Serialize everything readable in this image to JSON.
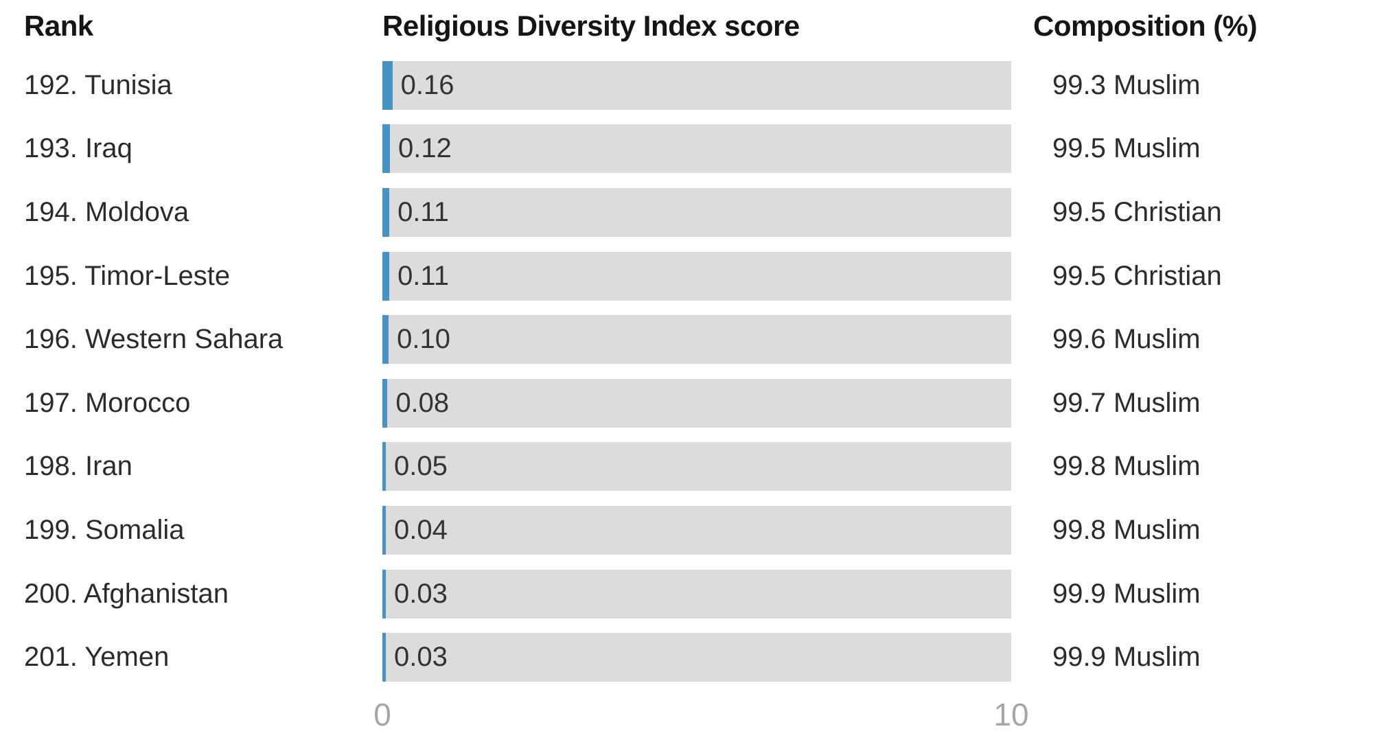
{
  "chart_data": {
    "type": "bar",
    "orientation": "horizontal",
    "columns": {
      "rank": "Rank",
      "score": "Religious Diversity Index score",
      "composition": "Composition (%)"
    },
    "axis": {
      "min": 0,
      "max": 10,
      "tick_labels": [
        "0",
        "10"
      ]
    },
    "colors": {
      "bar_fill": "#4592c5",
      "bar_track": "#dcdcdc"
    },
    "rows": [
      {
        "rank_label": "192. Tunisia",
        "country": "Tunisia",
        "score": 0.16,
        "score_label": "0.16",
        "composition": "99.3 Muslim"
      },
      {
        "rank_label": "193. Iraq",
        "country": "Iraq",
        "score": 0.12,
        "score_label": "0.12",
        "composition": "99.5 Muslim"
      },
      {
        "rank_label": "194. Moldova",
        "country": "Moldova",
        "score": 0.11,
        "score_label": "0.11",
        "composition": "99.5 Christian"
      },
      {
        "rank_label": "195. Timor-Leste",
        "country": "Timor-Leste",
        "score": 0.11,
        "score_label": "0.11",
        "composition": "99.5 Christian"
      },
      {
        "rank_label": "196. Western Sahara",
        "country": "Western Sahara",
        "score": 0.1,
        "score_label": "0.10",
        "composition": "99.6 Muslim"
      },
      {
        "rank_label": "197. Morocco",
        "country": "Morocco",
        "score": 0.08,
        "score_label": "0.08",
        "composition": "99.7 Muslim"
      },
      {
        "rank_label": "198. Iran",
        "country": "Iran",
        "score": 0.05,
        "score_label": "0.05",
        "composition": "99.8 Muslim"
      },
      {
        "rank_label": "199. Somalia",
        "country": "Somalia",
        "score": 0.04,
        "score_label": "0.04",
        "composition": "99.8 Muslim"
      },
      {
        "rank_label": "200. Afghanistan",
        "country": "Afghanistan",
        "score": 0.03,
        "score_label": "0.03",
        "composition": "99.9 Muslim"
      },
      {
        "rank_label": "201. Yemen",
        "country": "Yemen",
        "score": 0.03,
        "score_label": "0.03",
        "composition": "99.9 Muslim"
      }
    ]
  }
}
